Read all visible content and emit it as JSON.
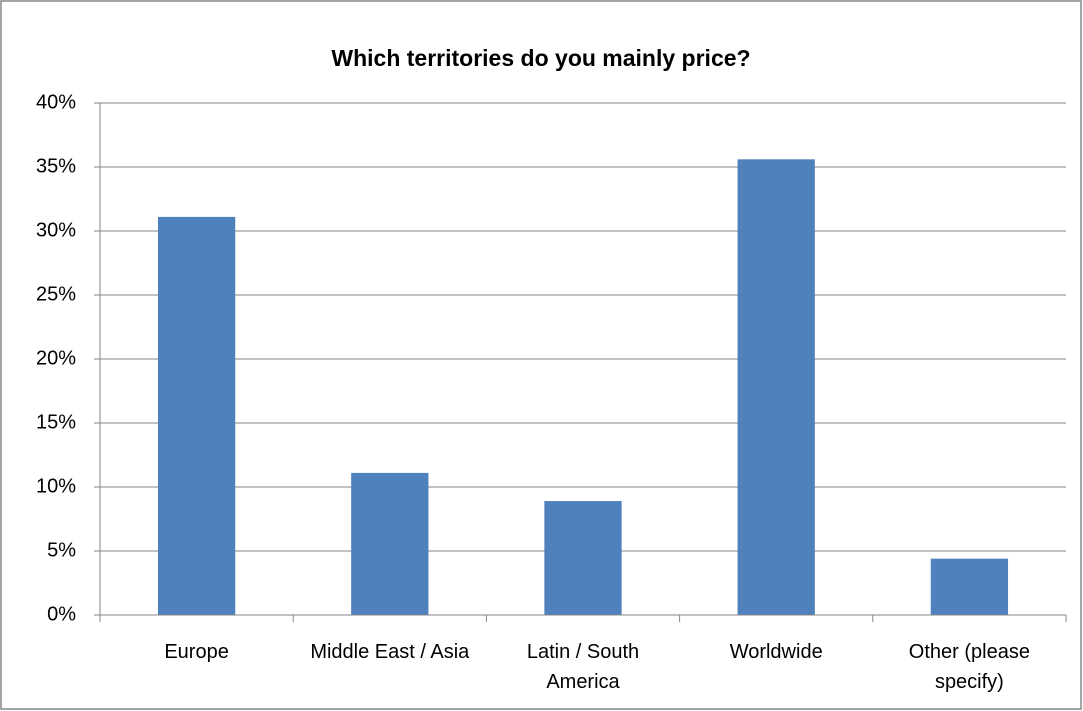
{
  "chart_data": {
    "type": "bar",
    "title": "Which territories do you mainly price?",
    "categories": [
      "Europe",
      "Middle East / Asia",
      "Latin / South America",
      "Worldwide",
      "Other (please specify)"
    ],
    "values": [
      31.1,
      11.1,
      8.9,
      35.6,
      4.4
    ],
    "color": "#4f81bd",
    "ylim": [
      0,
      40
    ],
    "yticks": [
      {
        "value": 0,
        "label": "0%"
      },
      {
        "value": 5,
        "label": "5%"
      },
      {
        "value": 10,
        "label": "10%"
      },
      {
        "value": 15,
        "label": "15%"
      },
      {
        "value": 20,
        "label": "20%"
      },
      {
        "value": 25,
        "label": "25%"
      },
      {
        "value": 30,
        "label": "30%"
      },
      {
        "value": 35,
        "label": "35%"
      },
      {
        "value": 40,
        "label": "40%"
      }
    ],
    "grid": true
  }
}
